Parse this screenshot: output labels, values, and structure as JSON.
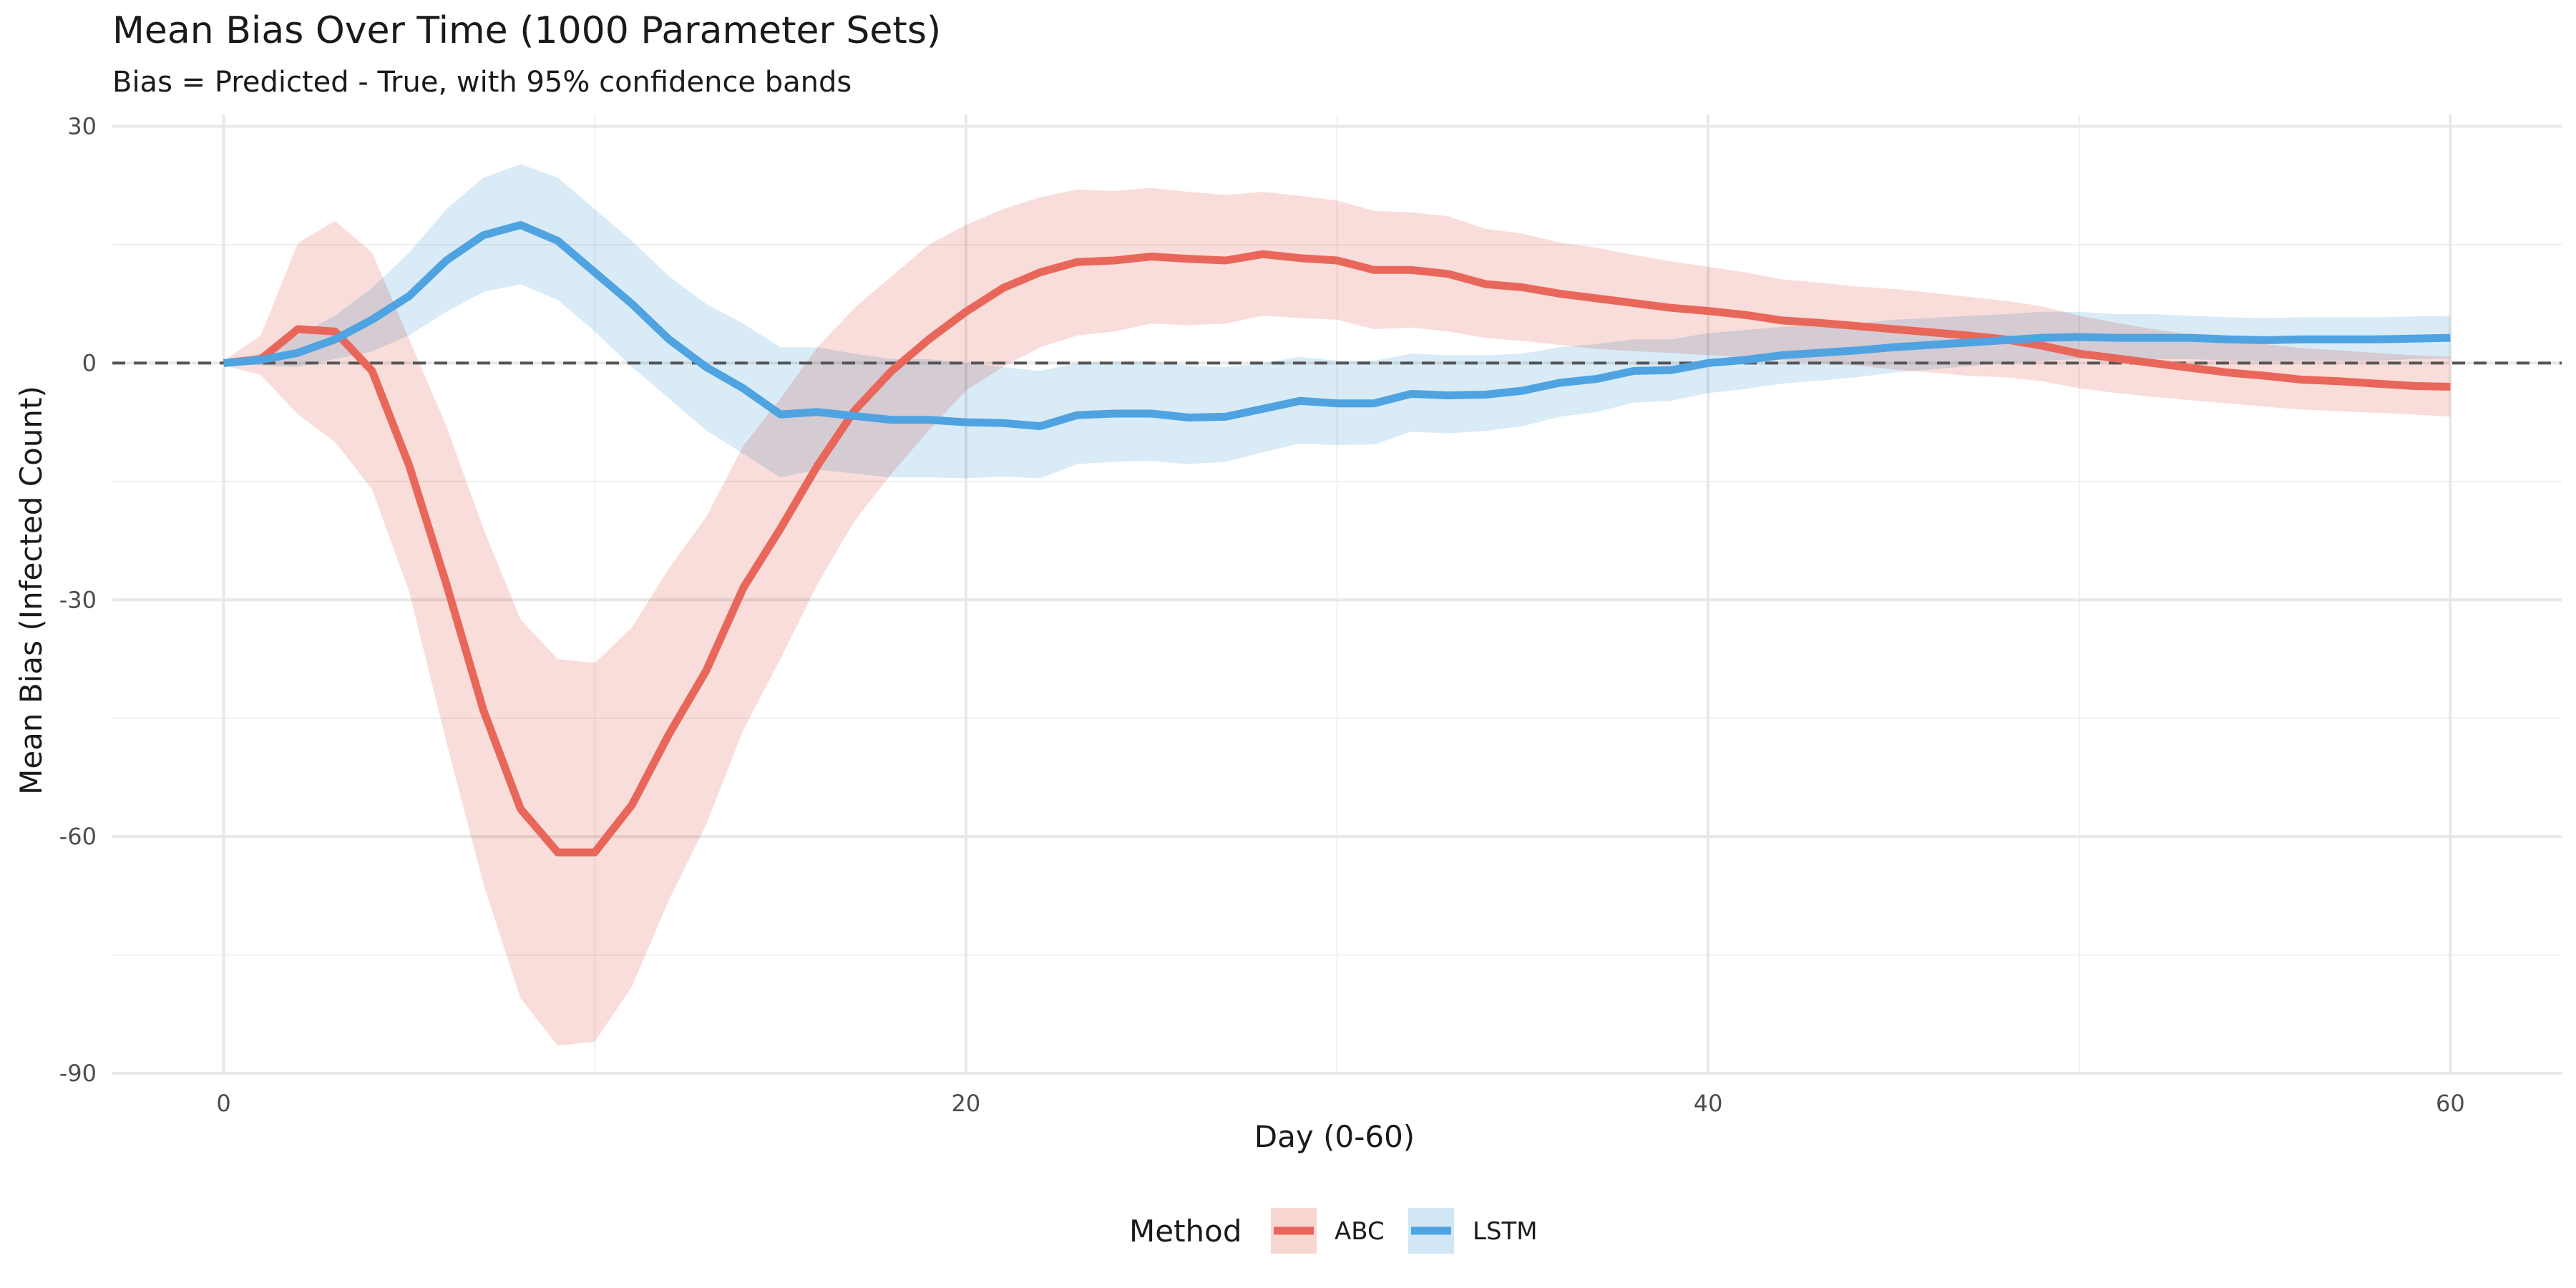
{
  "chart_data": {
    "type": "line",
    "title": "Mean Bias Over Time (1000 Parameter Sets)",
    "subtitle": "Bias = Predicted - True, with 95% confidence bands",
    "xlabel": "Day (0-60)",
    "ylabel": "Mean Bias (Infected Count)",
    "xlim": [
      -3,
      63
    ],
    "ylim": [
      -90,
      31.5
    ],
    "x_ticks": [
      0,
      20,
      40,
      60
    ],
    "x_tick_labels": [
      "0",
      "20",
      "40",
      "60"
    ],
    "y_ticks": [
      30,
      0,
      -30,
      -60,
      -90
    ],
    "y_tick_labels": [
      "30",
      "0",
      "-30",
      "-60",
      "-90"
    ],
    "grid": true,
    "reference_line": {
      "y": 0,
      "style": "dashed"
    },
    "legend": {
      "title": "Method",
      "position": "bottom"
    },
    "x": [
      0,
      1,
      2,
      3,
      4,
      5,
      6,
      7,
      8,
      9,
      10,
      11,
      12,
      13,
      14,
      15,
      16,
      17,
      18,
      19,
      20,
      21,
      22,
      23,
      24,
      25,
      26,
      27,
      28,
      29,
      30,
      31,
      32,
      33,
      34,
      35,
      36,
      37,
      38,
      39,
      40,
      41,
      42,
      43,
      44,
      45,
      46,
      47,
      48,
      49,
      50,
      51,
      52,
      53,
      54,
      55,
      56,
      57,
      58,
      59,
      60
    ],
    "series": [
      {
        "name": "ABC",
        "color": "#e8675a",
        "band_color": "#f8d7d3",
        "values": [
          0,
          0.5,
          4.3,
          4,
          -1,
          -13,
          -28,
          -44,
          -56.5,
          -62,
          -62,
          -56,
          -47,
          -39,
          -28.5,
          -21,
          -13,
          -6,
          -1,
          3,
          6.5,
          9.5,
          11.5,
          12.8,
          13,
          13.5,
          13.2,
          13,
          13.8,
          13.3,
          13,
          11.8,
          11.8,
          11.3,
          10,
          9.6,
          8.8,
          8.2,
          7.6,
          7,
          6.6,
          6.1,
          5.4,
          5.1,
          4.7,
          4.3,
          3.9,
          3.5,
          3,
          2.2,
          1.2,
          0.6,
          0,
          -0.6,
          -1.2,
          -1.6,
          -2.1,
          -2.3,
          -2.6,
          -2.9,
          -3
        ],
        "lower": [
          -0.3,
          -1.5,
          -6.5,
          -10,
          -16,
          -29,
          -48,
          -66,
          -80.5,
          -86.5,
          -86,
          -79,
          -68,
          -58.5,
          -46.5,
          -37.5,
          -28,
          -20,
          -14,
          -8.5,
          -3.5,
          -0.5,
          2,
          3.5,
          4,
          5,
          4.8,
          5,
          6,
          5.7,
          5.5,
          4.3,
          4.5,
          4,
          3.2,
          2.8,
          2.3,
          1.8,
          1.5,
          1.3,
          1,
          0.7,
          0.4,
          0,
          -0.3,
          -0.8,
          -1.2,
          -1.6,
          -1.8,
          -2.3,
          -3.2,
          -3.8,
          -4.3,
          -4.7,
          -5.1,
          -5.5,
          -5.9,
          -6.1,
          -6.3,
          -6.5,
          -6.8
        ],
        "upper": [
          0.3,
          3.5,
          15.2,
          18,
          14,
          3,
          -8,
          -21,
          -32.5,
          -37.5,
          -38,
          -33.5,
          -26,
          -19.5,
          -10.5,
          -4.5,
          2,
          7,
          11,
          15,
          17.5,
          19.5,
          21,
          22,
          21.8,
          22.2,
          21.7,
          21.3,
          21.7,
          21.2,
          20.6,
          19.3,
          19.1,
          18.6,
          17,
          16.4,
          15.3,
          14.6,
          13.7,
          12.9,
          12.2,
          11.5,
          10.6,
          10.2,
          9.7,
          9.4,
          8.9,
          8.4,
          7.9,
          7.2,
          6,
          5.1,
          4.3,
          3.6,
          2.9,
          2.4,
          1.9,
          1.6,
          1.3,
          1,
          0.8
        ]
      },
      {
        "name": "LSTM",
        "color": "#4fa3e0",
        "band_color": "#d2e7f6",
        "values": [
          0,
          0.4,
          1.3,
          3,
          5.5,
          8.5,
          13,
          16.2,
          17.5,
          15.5,
          11.5,
          7.5,
          3,
          -0.5,
          -3.2,
          -6.5,
          -6.2,
          -6.7,
          -7.2,
          -7.2,
          -7.5,
          -7.6,
          -8,
          -6.6,
          -6.4,
          -6.4,
          -6.9,
          -6.8,
          -5.8,
          -4.8,
          -5.1,
          -5.1,
          -3.9,
          -4.1,
          -4,
          -3.5,
          -2.5,
          -2,
          -1,
          -0.9,
          0,
          0.4,
          1,
          1.3,
          1.6,
          2,
          2.3,
          2.6,
          2.9,
          3.2,
          3.3,
          3.2,
          3.2,
          3.2,
          3,
          2.9,
          3,
          3,
          3,
          3.1,
          3.2
        ],
        "lower": [
          0,
          -0.3,
          -0.5,
          0.5,
          1.5,
          3.5,
          6.5,
          9,
          10,
          8,
          4,
          -0.5,
          -4.5,
          -8.5,
          -11.5,
          -14.5,
          -13.5,
          -14,
          -14.5,
          -14.5,
          -14.6,
          -14.4,
          -14.6,
          -12.8,
          -12.5,
          -12.4,
          -12.8,
          -12.5,
          -11.3,
          -10.2,
          -10.4,
          -10.3,
          -8.7,
          -8.9,
          -8.6,
          -8,
          -6.8,
          -6.2,
          -5,
          -4.8,
          -3.8,
          -3.3,
          -2.6,
          -2.2,
          -1.8,
          -1.2,
          -0.8,
          -0.4,
          0,
          0.3,
          0.5,
          0.5,
          0.5,
          0.5,
          0.3,
          0.2,
          0.3,
          0.3,
          0.3,
          0.5,
          0.6
        ],
        "upper": [
          0,
          1.2,
          3.5,
          6,
          9.5,
          14,
          19.5,
          23.5,
          25.2,
          23.5,
          19.5,
          15.5,
          11,
          7.5,
          5,
          2,
          2,
          1.2,
          0.5,
          0.5,
          0,
          -0.5,
          -1,
          0,
          0.2,
          0.2,
          -0.3,
          -0.5,
          0,
          0.8,
          0.3,
          0.3,
          1.2,
          1,
          1,
          1.2,
          2,
          2.4,
          3,
          3,
          3.8,
          4.2,
          4.6,
          4.8,
          5,
          5.5,
          5.7,
          6,
          6.2,
          6.5,
          6.5,
          6.2,
          6.2,
          6,
          5.8,
          5.7,
          5.8,
          5.8,
          5.8,
          5.9,
          6
        ]
      }
    ]
  }
}
